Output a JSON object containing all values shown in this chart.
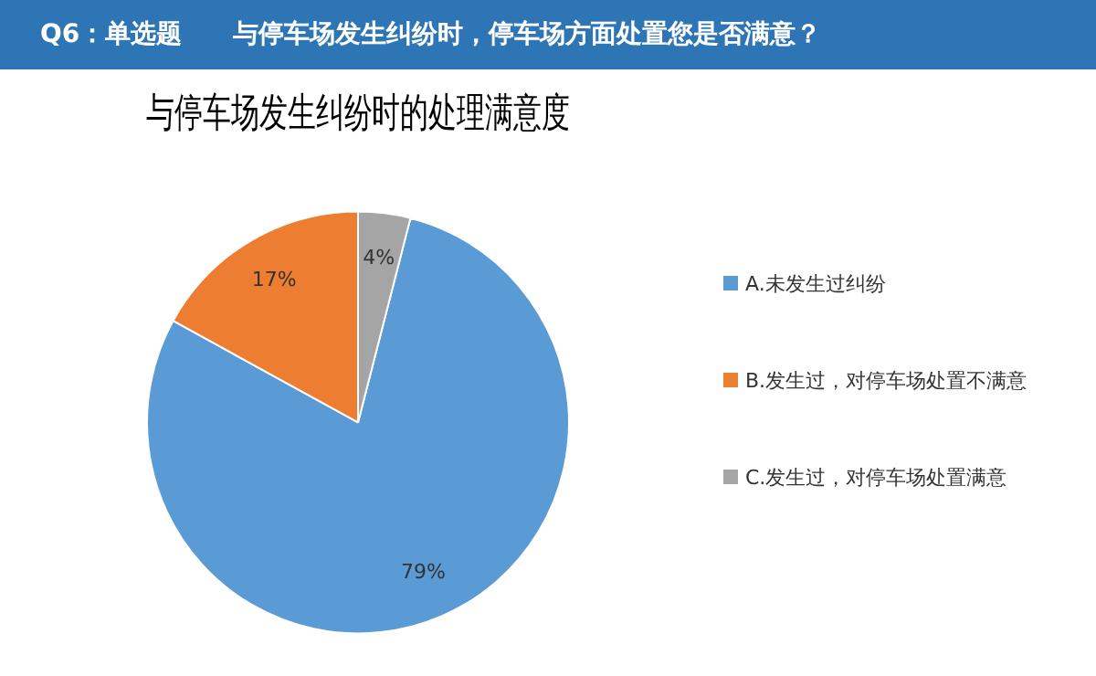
{
  "chart_data": {
    "type": "pie",
    "title": "与停车场发生纠纷时的处理满意度",
    "annotations": [
      "Q6：单选题　　与停车场发生纠纷时，停车场方面处置您是否满意？"
    ],
    "categories": [
      "A.未发生过纠纷",
      "B.发生过，对停车场处置不满意",
      "C.发生过，对停车场处置满意"
    ],
    "values": [
      79,
      17,
      4
    ],
    "value_labels": [
      "79%",
      "17%",
      "4%"
    ],
    "colors": [
      "#5b9bd5",
      "#ed7d31",
      "#a5a5a5"
    ],
    "legend": "right"
  }
}
